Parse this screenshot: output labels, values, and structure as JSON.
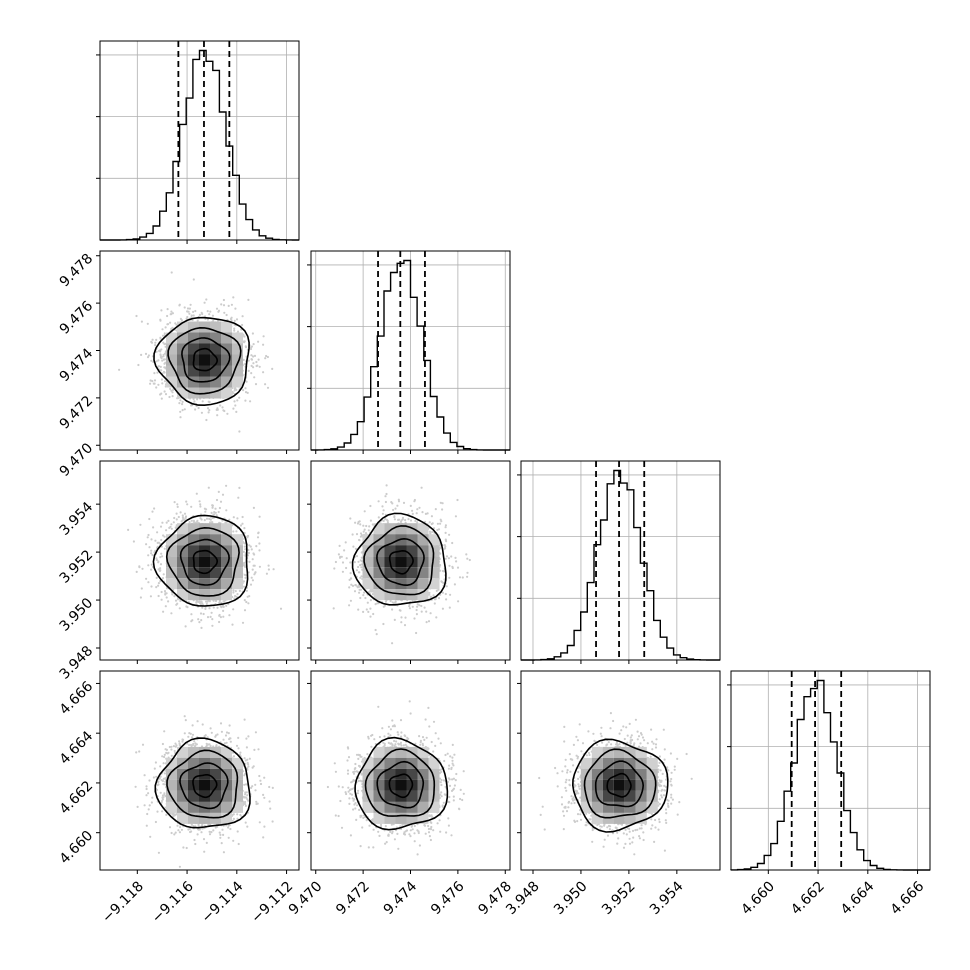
{
  "chart_data": {
    "type": "corner",
    "title": "",
    "parameters": [
      {
        "range": [
          -9.1195,
          -9.1115
        ],
        "ticks": [
          -9.118,
          -9.116,
          -9.114,
          -9.112
        ],
        "tick_labels": [
          "−9.118",
          "−9.116",
          "−9.114",
          "−9.112"
        ],
        "mean": -9.1153,
        "sd": 0.00085,
        "quantiles": [
          -9.11635,
          -9.11532,
          -9.1143
        ]
      },
      {
        "range": [
          9.4698,
          9.4782
        ],
        "ticks": [
          9.47,
          9.472,
          9.474,
          9.476,
          9.478
        ],
        "tick_labels": [
          "9.470",
          "9.472",
          "9.474",
          "9.476",
          "9.478"
        ],
        "mean": 9.4736,
        "sd": 0.00088,
        "quantiles": [
          9.47263,
          9.47357,
          9.47461
        ]
      },
      {
        "range": [
          3.9475,
          3.9558
        ],
        "ticks": [
          3.948,
          3.95,
          3.952,
          3.954
        ],
        "tick_labels": [
          "3.948",
          "3.950",
          "3.952",
          "3.954"
        ],
        "mean": 3.9516,
        "sd": 0.0009,
        "quantiles": [
          3.95063,
          3.95159,
          3.95264
        ]
      },
      {
        "range": [
          4.6585,
          4.6665
        ],
        "ticks": [
          4.66,
          4.662,
          4.664,
          4.666
        ],
        "tick_labels": [
          "4.660",
          "4.662",
          "4.664",
          "4.666"
        ],
        "mean": 4.6619,
        "sd": 0.00085,
        "quantiles": [
          4.66094,
          4.66188,
          4.66293
        ]
      }
    ],
    "histogram_bins": 30,
    "quantile_levels": [
      0.16,
      0.5,
      0.84
    ],
    "contour_levels_sigma": [
      0.5,
      1.0,
      1.5,
      2.0
    ],
    "grid": true,
    "legend": "none",
    "line_color": "#000000",
    "point_color": "#aaaaaa",
    "grid_color": "#b0b0b0"
  }
}
